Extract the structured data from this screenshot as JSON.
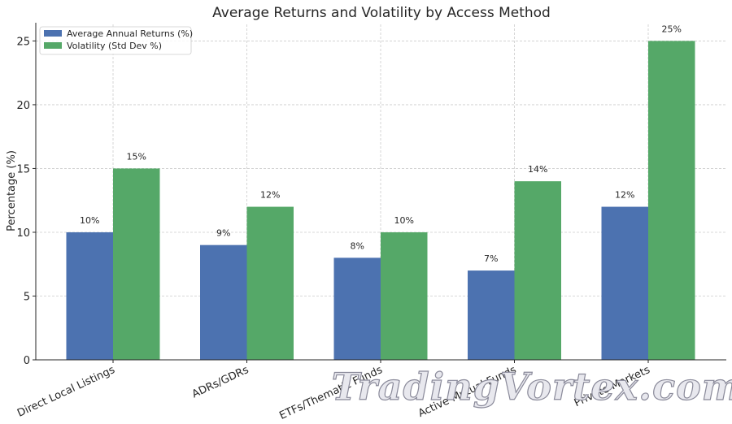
{
  "chart_data": {
    "type": "bar",
    "title": "Average Returns and Volatility by Access Method",
    "xlabel": "",
    "ylabel": "Percentage (%)",
    "categories": [
      "Direct Local Listings",
      "ADRs/GDRs",
      "ETFs/Thematic Funds",
      "Active Mutual Funds",
      "Private Markets"
    ],
    "series": [
      {
        "name": "Average Annual Returns (%)",
        "values": [
          10,
          9,
          8,
          7,
          12
        ],
        "color": "#4c72b0"
      },
      {
        "name": "Volatility (Std Dev %)",
        "values": [
          15,
          12,
          10,
          14,
          25
        ],
        "color": "#55a868"
      }
    ],
    "data_labels": [
      [
        "10%",
        "9%",
        "8%",
        "7%",
        "12%"
      ],
      [
        "15%",
        "12%",
        "10%",
        "14%",
        "25%"
      ]
    ],
    "ylim": [
      0,
      26.3
    ],
    "yticks": [
      "0",
      "5",
      "10",
      "15",
      "20",
      "25"
    ],
    "grid": true,
    "legend_position": "top-left"
  },
  "watermark": "TradingVortex.com"
}
